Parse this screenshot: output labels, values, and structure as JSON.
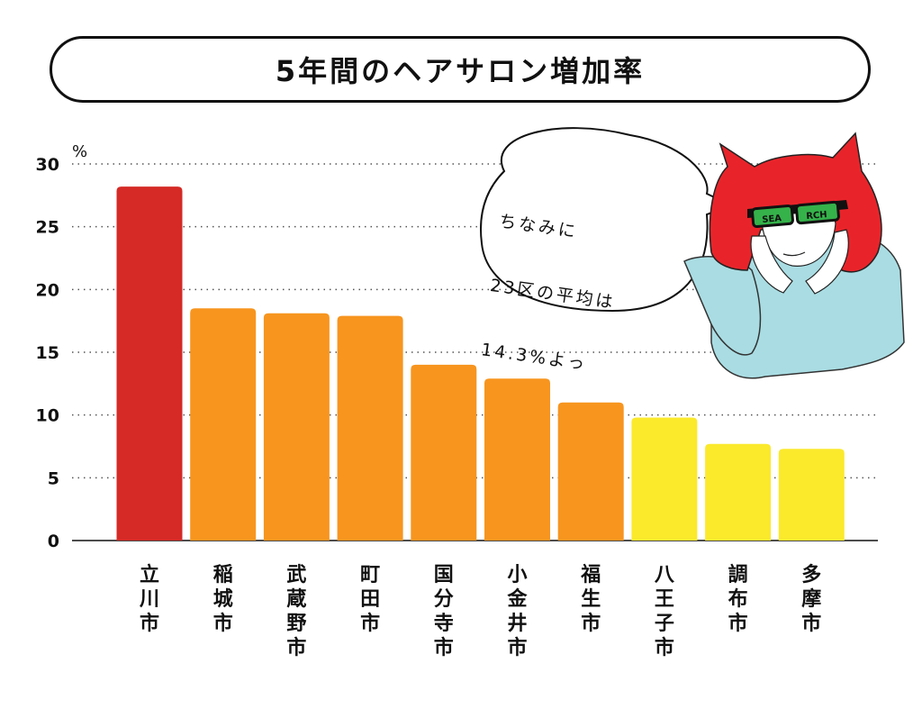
{
  "title": "5年間のヘアサロン増加率",
  "speech_bubble": {
    "lines": [
      "ちなみに",
      "23区の平均は",
      "14.3%よっ"
    ]
  },
  "glasses_text": [
    "SEA",
    "RCH"
  ],
  "colors": {
    "red": "#d52a26",
    "orange": "#f7951f",
    "yellow": "#fbe92c",
    "hair": "#e8242a",
    "sweater": "#a9dde3",
    "lens": "#35b24a"
  },
  "chart_data": {
    "type": "bar",
    "ylabel": "%",
    "ylim": [
      0,
      30
    ],
    "yticks": [
      0,
      5,
      10,
      15,
      20,
      25,
      30
    ],
    "grid": true,
    "categories": [
      "立川市",
      "稲城市",
      "武蔵野市",
      "町田市",
      "国分寺市",
      "小金井市",
      "福生市",
      "八王子市",
      "調布市",
      "多摩市"
    ],
    "values": [
      28.2,
      18.5,
      18.1,
      17.9,
      14.0,
      12.9,
      11.0,
      9.8,
      7.7,
      7.3
    ],
    "bar_colors": [
      "red",
      "orange",
      "orange",
      "orange",
      "orange",
      "orange",
      "orange",
      "yellow",
      "yellow",
      "yellow"
    ]
  }
}
